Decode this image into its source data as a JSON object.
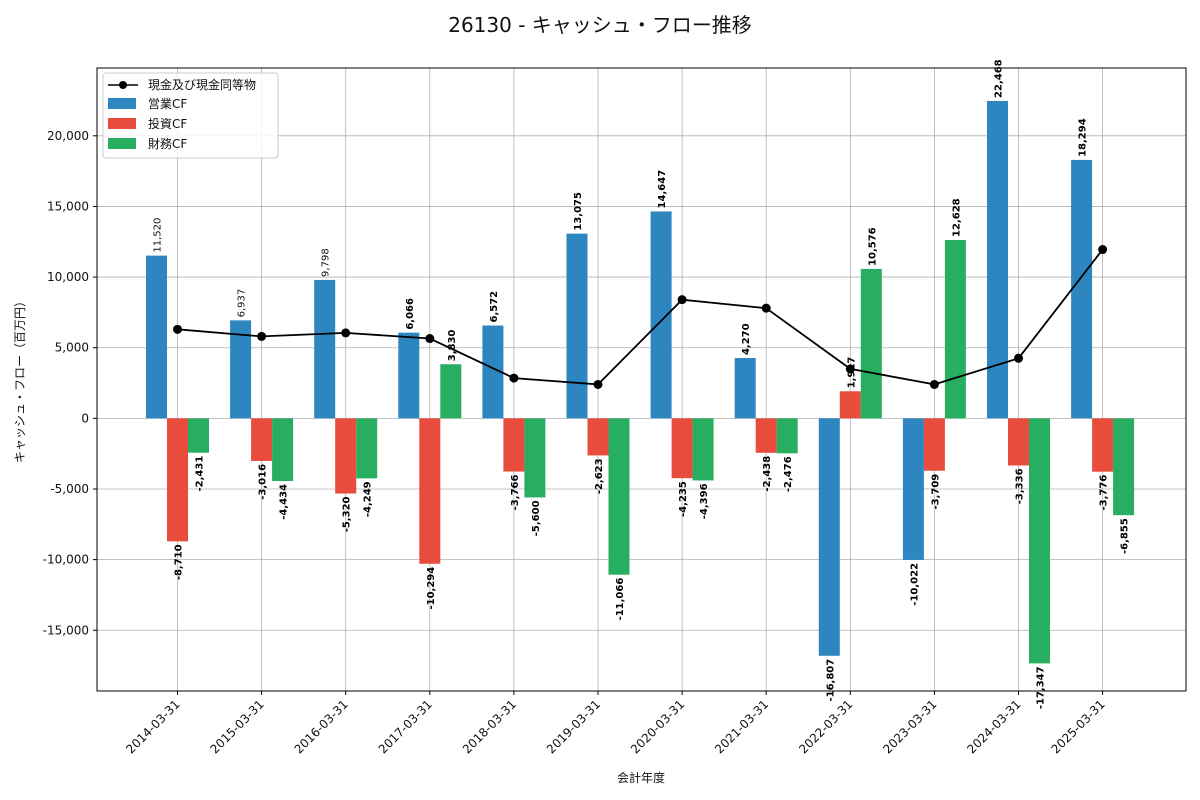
{
  "chart_data": {
    "type": "bar",
    "title": "26130 - キャッシュ・フロー推移",
    "xlabel": "会計年度",
    "ylabel": "キャッシュ・フロー（百万円）",
    "ylim": [
      -19300,
      24800
    ],
    "yticks": [
      -15000,
      -10000,
      -5000,
      0,
      5000,
      10000,
      15000,
      20000
    ],
    "ytick_labels": [
      "-15,000",
      "-10,000",
      "-5,000",
      "0",
      "5,000",
      "10,000",
      "15,000",
      "20,000"
    ],
    "grid": true,
    "legend_position": "top-left",
    "categories": [
      "2014-03-31",
      "2015-03-31",
      "2016-03-31",
      "2017-03-31",
      "2018-03-31",
      "2019-03-31",
      "2020-03-31",
      "2021-03-31",
      "2022-03-31",
      "2023-03-31",
      "2024-03-31",
      "2025-03-31"
    ],
    "series": [
      {
        "name": "営業CF",
        "type": "bar",
        "color": "#2e86c1",
        "values": [
          11520,
          6937,
          9798,
          6066,
          6572,
          13075,
          14647,
          4270,
          -16807,
          -10022,
          22468,
          18294
        ],
        "labels": [
          "11,520",
          "6,937",
          "9,798",
          "6,066",
          "6,572",
          "13,075",
          "14,647",
          "4,270",
          "-16,807",
          "-10,022",
          "22,468",
          "18,294"
        ],
        "label_bold": [
          false,
          false,
          false,
          true,
          true,
          true,
          true,
          true,
          true,
          true,
          true,
          true
        ]
      },
      {
        "name": "投資CF",
        "type": "bar",
        "color": "#e74c3c",
        "values": [
          -8710,
          -3016,
          -5320,
          -10294,
          -3766,
          -2623,
          -4235,
          -2438,
          1917,
          -3709,
          -3336,
          -3776
        ],
        "labels": [
          "-8,710",
          "-3,016",
          "-5,320",
          "-10,294",
          "-3,766",
          "-2,623",
          "-4,235",
          "-2,438",
          "1,917",
          "-3,709",
          "-3,336",
          "-3,776"
        ],
        "label_bold": [
          true,
          true,
          true,
          true,
          true,
          true,
          true,
          true,
          true,
          true,
          true,
          true
        ]
      },
      {
        "name": "財務CF",
        "type": "bar",
        "color": "#27ae60",
        "values": [
          -2431,
          -4434,
          -4249,
          3830,
          -5600,
          -11066,
          -4396,
          -2476,
          10576,
          12628,
          -17347,
          -6855
        ],
        "labels": [
          "-2,431",
          "-4,434",
          "-4,249",
          "3,830",
          "-5,600",
          "-11,066",
          "-4,396",
          "-2,476",
          "10,576",
          "12,628",
          "-17,347",
          "-6,855"
        ],
        "label_bold": [
          true,
          true,
          true,
          true,
          true,
          true,
          true,
          true,
          true,
          true,
          true,
          true
        ]
      },
      {
        "name": "現金及び現金同等物",
        "type": "line",
        "color": "#000000",
        "values": [
          6300,
          5800,
          6050,
          5650,
          2850,
          2400,
          8400,
          7800,
          3500,
          2400,
          4250,
          11950
        ]
      }
    ]
  }
}
